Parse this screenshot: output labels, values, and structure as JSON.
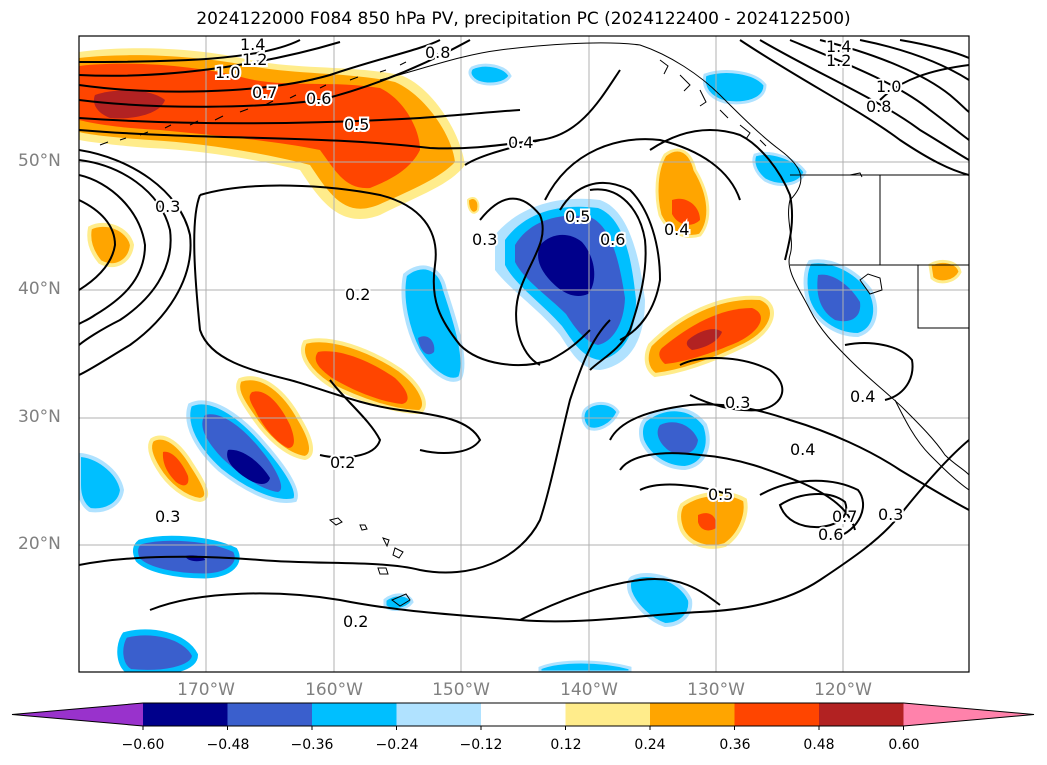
{
  "title": "2024122000 F084 850 hPa PV, precipitation PC (2024122400 - 2024122500)",
  "lat_labels": [
    "50°N",
    "40°N",
    "30°N",
    "20°N"
  ],
  "lon_labels": [
    "170°W",
    "160°W",
    "150°W",
    "140°W",
    "130°W",
    "120°W"
  ],
  "colorbar": {
    "tick_labels": [
      "−0.60",
      "−0.48",
      "−0.36",
      "−0.24",
      "−0.12",
      "0.12",
      "0.24",
      "0.36",
      "0.48",
      "0.60"
    ],
    "colors": [
      "#9932cc",
      "#00008b",
      "#3a5fcd",
      "#00bfff",
      "#b0e2ff",
      "#ffffff",
      "#ffec8b",
      "#ffa500",
      "#ff4500",
      "#b22222",
      "#ff82ab"
    ]
  },
  "contour_labels": [
    "1.4",
    "1.2",
    "1.0",
    "0.8",
    "0.7",
    "0.6",
    "0.5",
    "0.4",
    "0.3",
    "0.2",
    "0.3",
    "0.6",
    "0.5",
    "0.4",
    "0.3",
    "0.2",
    "0.2",
    "0.4",
    "0.5",
    "0.3",
    "0.6",
    "0.7",
    "0.3",
    "0.4",
    "1.4",
    "1.2",
    "1.0",
    "0.8"
  ]
}
